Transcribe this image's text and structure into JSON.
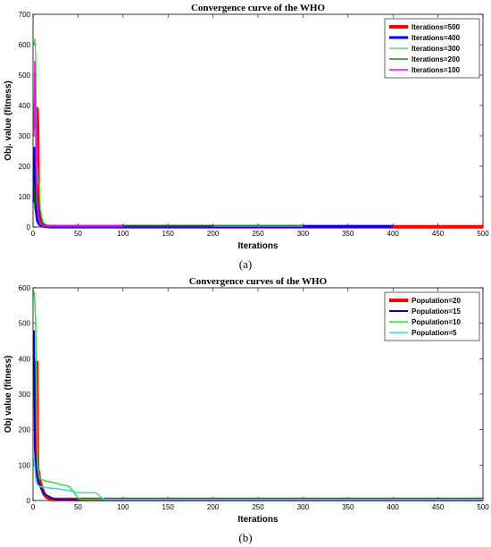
{
  "chart_data": [
    {
      "type": "line",
      "title": "Convergence curve of the WHO",
      "xlabel": "Iterations",
      "ylabel": "Obj. value (fitness)",
      "xlim": [
        0,
        500
      ],
      "ylim": [
        0,
        700
      ],
      "xticks": [
        0,
        50,
        100,
        150,
        200,
        250,
        300,
        350,
        400,
        450,
        500
      ],
      "yticks": [
        0,
        100,
        200,
        300,
        400,
        500,
        600,
        700
      ],
      "legend_position": "top-right",
      "caption": "(a)",
      "series": [
        {
          "name": "Iterations=500",
          "color": "#ff0000",
          "width": 4,
          "x": [
            1,
            3,
            4,
            4.5,
            5,
            6,
            7,
            9,
            12,
            20,
            500
          ],
          "y": [
            330,
            330,
            390,
            385,
            330,
            60,
            20,
            8,
            3,
            1,
            1
          ]
        },
        {
          "name": "Iterations=400",
          "color": "#0000ee",
          "width": 3,
          "x": [
            1,
            2,
            3,
            4,
            5,
            7,
            10,
            15,
            400
          ],
          "y": [
            80,
            260,
            70,
            40,
            20,
            8,
            4,
            2,
            2
          ]
        },
        {
          "name": "Iterations=300",
          "color": "#33dd33",
          "width": 1.2,
          "x": [
            1,
            2,
            3,
            4,
            6,
            7,
            8,
            10,
            12,
            20,
            300
          ],
          "y": [
            600,
            620,
            560,
            230,
            140,
            140,
            60,
            30,
            10,
            3,
            3
          ]
        },
        {
          "name": "Iterations=200",
          "color": "#006600",
          "width": 1.2,
          "x": [
            1,
            2,
            3,
            5,
            6,
            8,
            10,
            14,
            20,
            200
          ],
          "y": [
            140,
            60,
            90,
            95,
            90,
            40,
            15,
            6,
            3,
            3
          ]
        },
        {
          "name": "Iterations=100",
          "color": "#ff00ff",
          "width": 1.5,
          "x": [
            1,
            2,
            3,
            4,
            5,
            6,
            8,
            12,
            100
          ],
          "y": [
            300,
            545,
            300,
            100,
            60,
            30,
            10,
            3,
            3
          ]
        }
      ]
    },
    {
      "type": "line",
      "title": "Convergence curves of the WHO",
      "xlabel": "Iterations",
      "ylabel": "Obj value (fitness)",
      "xlim": [
        0,
        500
      ],
      "ylim": [
        0,
        600
      ],
      "xticks": [
        0,
        50,
        100,
        150,
        200,
        250,
        300,
        350,
        400,
        450,
        500
      ],
      "yticks": [
        0,
        100,
        200,
        300,
        400,
        500,
        600
      ],
      "legend_position": "top-right",
      "caption": "(b)",
      "series": [
        {
          "name": "Population=20",
          "color": "#ff0000",
          "width": 4,
          "x": [
            1,
            2,
            3,
            4,
            5,
            6,
            7,
            9,
            12,
            15,
            20,
            500
          ],
          "y": [
            340,
            340,
            390,
            390,
            90,
            80,
            60,
            40,
            20,
            10,
            3,
            3
          ]
        },
        {
          "name": "Population=15",
          "color": "#0000cc",
          "width": 2,
          "x": [
            1,
            2,
            3,
            4,
            5,
            6,
            8,
            10,
            12,
            15,
            20,
            25,
            30,
            500
          ],
          "y": [
            480,
            150,
            100,
            80,
            60,
            50,
            40,
            30,
            20,
            15,
            8,
            3,
            2,
            2
          ]
        },
        {
          "name": "Population=10",
          "color": "#33dd33",
          "width": 1.5,
          "x": [
            1,
            2,
            3,
            4,
            5,
            6,
            7,
            8,
            10,
            12,
            13,
            15,
            20,
            25,
            30,
            40,
            45,
            50,
            55,
            500
          ],
          "y": [
            590,
            560,
            500,
            300,
            100,
            80,
            65,
            60,
            58,
            58,
            55,
            55,
            52,
            50,
            45,
            40,
            25,
            5,
            3,
            3
          ]
        },
        {
          "name": "Population=5",
          "color": "#33dddd",
          "width": 1.5,
          "x": [
            1,
            2,
            3,
            4,
            5,
            6,
            7,
            8,
            10,
            20,
            30,
            40,
            45,
            50,
            60,
            70,
            75,
            80,
            500
          ],
          "y": [
            120,
            90,
            60,
            50,
            45,
            42,
            40,
            40,
            38,
            35,
            32,
            28,
            25,
            22,
            22,
            22,
            10,
            3,
            3
          ]
        }
      ]
    }
  ]
}
